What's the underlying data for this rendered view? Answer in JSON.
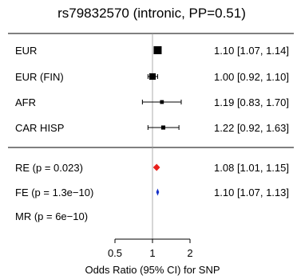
{
  "chart_data": {
    "type": "forest",
    "title": "rs79832570 (intronic, PP=0.51)",
    "xlabel": "Odds Ratio (95% CI) for SNP",
    "x_scale": "log",
    "xlim": [
      0.5,
      2
    ],
    "x_ticks": [
      {
        "value": 0.5,
        "label": "0.5"
      },
      {
        "value": 1,
        "label": "1"
      },
      {
        "value": 2,
        "label": "2"
      }
    ],
    "reference_line": 1,
    "studies": [
      {
        "label": "EUR",
        "or": 1.1,
        "lo": 1.07,
        "hi": 1.14,
        "text": "1.10 [1.07, 1.14]",
        "weight": 1.0
      },
      {
        "label": "EUR (FIN)",
        "or": 1.0,
        "lo": 0.92,
        "hi": 1.1,
        "text": "1.00 [0.92, 1.10]",
        "weight": 0.75
      },
      {
        "label": "AFR",
        "or": 1.19,
        "lo": 0.83,
        "hi": 1.7,
        "text": "1.19 [0.83, 1.70]",
        "weight": 0.3
      },
      {
        "label": "CAR HISP",
        "or": 1.22,
        "lo": 0.92,
        "hi": 1.63,
        "text": "1.22 [0.92, 1.63]",
        "weight": 0.35
      }
    ],
    "summaries": [
      {
        "label": "RE (p = 0.023)",
        "or": 1.08,
        "lo": 1.01,
        "hi": 1.15,
        "text": "1.08 [1.01, 1.15]",
        "color": "#e8201c"
      },
      {
        "label": "FE (p = 1.3e−10)",
        "or": 1.1,
        "lo": 1.07,
        "hi": 1.13,
        "text": "1.10 [1.07, 1.13]",
        "color": "#1530c8"
      },
      {
        "label": "MR (p = 6e−10)",
        "or": null,
        "text": ""
      }
    ]
  }
}
